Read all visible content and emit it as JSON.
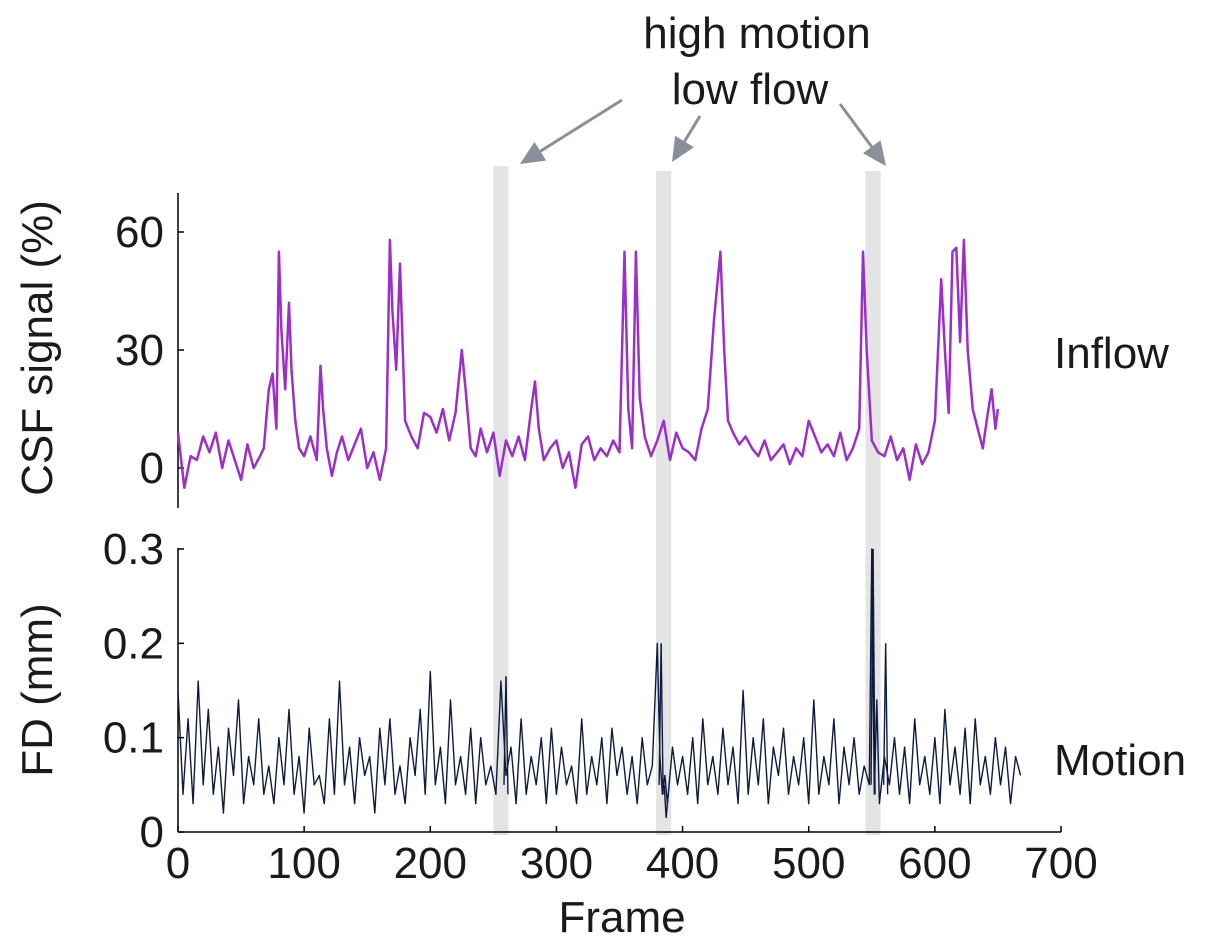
{
  "chart_data": [
    {
      "type": "line",
      "title": "",
      "ylabel": "CSF signal (%)",
      "xlabel": "",
      "side_label": "Inflow",
      "ylim": [
        -10,
        70
      ],
      "xlim": [
        0,
        700
      ],
      "yticks": [
        0,
        30,
        60
      ],
      "color": "#9b30c8",
      "series": [
        {
          "x": [
            0,
            5,
            10,
            15,
            20,
            25,
            30,
            35,
            40,
            45,
            50,
            55,
            60,
            65,
            68,
            72,
            75,
            78,
            80,
            82,
            85,
            88,
            90,
            93,
            96,
            100,
            105,
            110,
            113,
            115,
            118,
            122,
            126,
            130,
            135,
            140,
            145,
            150,
            155,
            160,
            165,
            168,
            170,
            173,
            176,
            180,
            185,
            190,
            195,
            200,
            205,
            210,
            215,
            220,
            225,
            228,
            232,
            236,
            240,
            245,
            250,
            255,
            260,
            265,
            270,
            275,
            280,
            283,
            286,
            290,
            295,
            300,
            305,
            310,
            315,
            320,
            325,
            330,
            335,
            340,
            345,
            350,
            354,
            357,
            360,
            363,
            366,
            370,
            375,
            380,
            385,
            390,
            395,
            400,
            405,
            410,
            415,
            420,
            425,
            430,
            433,
            436,
            440,
            445,
            450,
            455,
            460,
            465,
            470,
            475,
            480,
            485,
            490,
            495,
            500,
            505,
            510,
            515,
            520,
            525,
            530,
            535,
            540,
            543,
            546,
            550,
            555,
            560,
            565,
            570,
            575,
            580,
            585,
            590,
            595,
            600,
            605,
            608,
            611,
            614,
            617,
            620,
            623,
            626,
            630,
            634,
            638,
            642,
            645,
            648,
            650
          ],
          "y": [
            9,
            -5,
            3,
            2,
            8,
            4,
            9,
            0,
            7,
            2,
            -3,
            6,
            0,
            3,
            5,
            20,
            24,
            10,
            55,
            35,
            20,
            42,
            25,
            12,
            5,
            3,
            8,
            2,
            26,
            15,
            5,
            -2,
            4,
            8,
            2,
            6,
            10,
            0,
            4,
            -3,
            5,
            58,
            40,
            25,
            52,
            12,
            8,
            5,
            14,
            13,
            9,
            15,
            7,
            14,
            30,
            20,
            5,
            3,
            10,
            4,
            9,
            -2,
            7,
            3,
            8,
            2,
            15,
            22,
            10,
            2,
            5,
            7,
            0,
            4,
            -5,
            6,
            8,
            2,
            5,
            3,
            7,
            4,
            55,
            15,
            5,
            55,
            18,
            8,
            3,
            7,
            12,
            2,
            9,
            5,
            4,
            2,
            10,
            15,
            38,
            55,
            30,
            12,
            9,
            6,
            8,
            5,
            3,
            7,
            2,
            4,
            6,
            1,
            5,
            3,
            12,
            8,
            4,
            6,
            3,
            9,
            2,
            5,
            10,
            55,
            30,
            7,
            4,
            3,
            8,
            2,
            5,
            -3,
            6,
            1,
            4,
            12,
            48,
            30,
            14,
            55,
            56,
            32,
            58,
            30,
            15,
            10,
            5,
            14,
            20,
            10,
            15
          ]
        }
      ]
    },
    {
      "type": "line",
      "title": "",
      "ylabel": "FD (mm)",
      "xlabel": "Frame",
      "side_label": "Motion",
      "ylim": [
        0,
        0.3
      ],
      "xlim": [
        0,
        700
      ],
      "yticks": [
        0,
        0.1,
        0.2,
        0.3
      ],
      "xticks": [
        0,
        100,
        200,
        300,
        400,
        500,
        600,
        700
      ],
      "color": "#0d1b3e",
      "series": [
        {
          "x": [
            0,
            4,
            8,
            12,
            16,
            20,
            24,
            28,
            32,
            36,
            40,
            44,
            48,
            52,
            56,
            60,
            64,
            68,
            72,
            76,
            80,
            84,
            88,
            92,
            96,
            100,
            104,
            108,
            112,
            116,
            120,
            124,
            128,
            132,
            136,
            140,
            144,
            148,
            152,
            156,
            160,
            164,
            168,
            172,
            176,
            180,
            184,
            188,
            192,
            196,
            200,
            204,
            208,
            212,
            216,
            220,
            224,
            228,
            232,
            236,
            240,
            244,
            248,
            252,
            256,
            260,
            264,
            268,
            272,
            276,
            280,
            284,
            288,
            292,
            296,
            300,
            304,
            308,
            312,
            316,
            320,
            324,
            328,
            332,
            336,
            340,
            344,
            348,
            352,
            356,
            360,
            364,
            368,
            372,
            376,
            380,
            382,
            384,
            386,
            388,
            392,
            396,
            400,
            404,
            408,
            412,
            416,
            420,
            424,
            428,
            432,
            436,
            440,
            444,
            448,
            452,
            456,
            460,
            464,
            468,
            472,
            476,
            480,
            484,
            488,
            492,
            496,
            500,
            504,
            508,
            512,
            516,
            520,
            524,
            528,
            532,
            536,
            540,
            544,
            548,
            550,
            552,
            554,
            556,
            560,
            564,
            568,
            572,
            576,
            580,
            584,
            588,
            592,
            596,
            600,
            604,
            608,
            612,
            616,
            620,
            624,
            628,
            632,
            636,
            640,
            644,
            648,
            652,
            656,
            660,
            664,
            668
          ],
          "y": [
            0.15,
            0.04,
            0.12,
            0.03,
            0.16,
            0.05,
            0.13,
            0.04,
            0.09,
            0.02,
            0.11,
            0.06,
            0.14,
            0.03,
            0.08,
            0.05,
            0.12,
            0.04,
            0.07,
            0.03,
            0.1,
            0.05,
            0.13,
            0.04,
            0.08,
            0.02,
            0.11,
            0.05,
            0.06,
            0.03,
            0.12,
            0.04,
            0.16,
            0.05,
            0.09,
            0.03,
            0.1,
            0.06,
            0.08,
            0.02,
            0.11,
            0.05,
            0.12,
            0.04,
            0.07,
            0.03,
            0.1,
            0.06,
            0.13,
            0.04,
            0.17,
            0.05,
            0.09,
            0.03,
            0.14,
            0.05,
            0.08,
            0.04,
            0.11,
            0.03,
            0.1,
            0.05,
            0.07,
            0.04,
            0.16,
            0.06,
            0.09,
            0.03,
            0.12,
            0.04,
            0.08,
            0.05,
            0.1,
            0.03,
            0.11,
            0.04,
            0.09,
            0.05,
            0.07,
            0.03,
            0.12,
            0.04,
            0.08,
            0.05,
            0.1,
            0.03,
            0.11,
            0.06,
            0.09,
            0.04,
            0.08,
            0.03,
            0.1,
            0.05,
            0.07,
            0.2,
            0.08,
            0.04,
            0.06,
            0.03,
            0.09,
            0.05,
            0.08,
            0.04,
            0.1,
            0.03,
            0.12,
            0.05,
            0.08,
            0.04,
            0.11,
            0.05,
            0.09,
            0.03,
            0.15,
            0.04,
            0.1,
            0.05,
            0.12,
            0.03,
            0.09,
            0.06,
            0.11,
            0.04,
            0.08,
            0.05,
            0.1,
            0.03,
            0.14,
            0.04,
            0.08,
            0.05,
            0.12,
            0.03,
            0.09,
            0.05,
            0.1,
            0.04,
            0.07,
            0.05,
            0.3,
            0.04,
            0.14,
            0.03,
            0.08,
            0.05,
            0.1,
            0.04,
            0.09,
            0.03,
            0.12,
            0.05,
            0.08,
            0.04,
            0.1,
            0.03,
            0.13,
            0.05,
            0.09,
            0.04,
            0.11,
            0.03,
            0.12,
            0.05,
            0.08,
            0.04,
            0.1,
            0.05,
            0.09,
            0.03,
            0.08,
            0.06
          ],
          "spikes": [
            {
              "x": 260,
              "y": 0.165
            },
            {
              "x": 383,
              "y": 0.2
            },
            {
              "x": 387,
              "y": 0.015
            },
            {
              "x": 551,
              "y": 0.3
            },
            {
              "x": 561,
              "y": 0.2
            }
          ]
        }
      ]
    }
  ],
  "annotation": {
    "line1": "high motion",
    "line2": "low flow",
    "color": "#8a909a"
  },
  "highlight_bands": [
    {
      "x_start": 250,
      "x_end": 262
    },
    {
      "x_start": 379,
      "x_end": 391
    },
    {
      "x_start": 545,
      "x_end": 557
    }
  ],
  "band_color": "#e4e4e4"
}
